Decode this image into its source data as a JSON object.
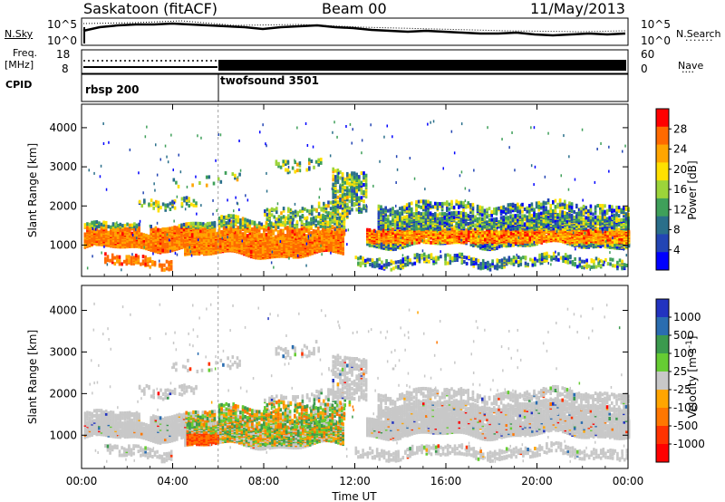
{
  "header": {
    "station": "Saskatoon (fitACF)",
    "beam": "Beam 00",
    "date": "11/May/2013"
  },
  "panels": {
    "nsky_label": "N.Sky",
    "nsearch_label": "N.Search",
    "nsky_ticks": [
      "10^5",
      "10^0"
    ],
    "nsearch_ticks": [
      "10^5",
      "10^0"
    ],
    "freq_label": "Freq.",
    "freq_unit": "[MHz]",
    "freq_ticks": [
      "18",
      "8"
    ],
    "nave_label": "Nave",
    "nave_ticks": [
      "60",
      "0"
    ],
    "cpid_label": "CPID",
    "cpid_segments": [
      {
        "name": "rbsp 200",
        "start_hour": 0
      },
      {
        "name": "twofsound 3501",
        "start_hour": 6
      }
    ]
  },
  "chart_data": [
    {
      "type": "heatmap",
      "name": "power",
      "ylabel": "Slant Range [km]",
      "yticks": [
        1000,
        2000,
        3000,
        4000
      ],
      "ylim": [
        200,
        4600
      ],
      "xlim": [
        0,
        24
      ],
      "colorbar_label": "Power [dB]",
      "colorbar_ticks": [
        "28",
        "24",
        "20",
        "16",
        "12",
        "8",
        "4"
      ],
      "colorbar_colors": [
        "#ff0000",
        "#ff6a00",
        "#ffa500",
        "#ffe000",
        "#9cd43a",
        "#3fa05a",
        "#2a6f8a",
        "#2345b4",
        "#0000ff"
      ]
    },
    {
      "type": "heatmap",
      "name": "velocity",
      "ylabel": "Slant Range [km]",
      "yticks": [
        1000,
        2000,
        3000,
        4000
      ],
      "ylim": [
        200,
        4600
      ],
      "xlim": [
        0,
        24
      ],
      "colorbar_label": "Velocity [m s^-1]",
      "colorbar_ticks": [
        "1000",
        "500",
        "100",
        "25",
        "-25",
        "-100",
        "-500",
        "-1000"
      ],
      "colorbar_colors": [
        "#2233c0",
        "#2a6db0",
        "#3b9a4e",
        "#66cc33",
        "#c8c8c8",
        "#ffa500",
        "#ff7700",
        "#ff3300",
        "#ff0000"
      ]
    }
  ],
  "xaxis": {
    "label": "Time UT",
    "ticks": [
      "00:00",
      "04:00",
      "08:00",
      "12:00",
      "16:00",
      "20:00",
      "00:00"
    ]
  }
}
